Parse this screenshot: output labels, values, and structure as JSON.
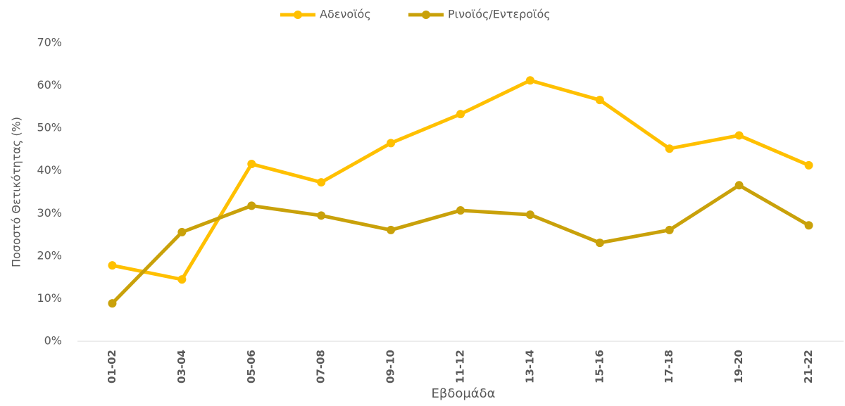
{
  "chart_data": {
    "type": "line",
    "x_label": "Εβδομάδα",
    "y_label": "Ποσοστό Θετικότητας (%)",
    "categories": [
      "01-02",
      "03-04",
      "05-06",
      "07-08",
      "09-10",
      "11-12",
      "13-14",
      "15-16",
      "17-18",
      "19-20",
      "21-22"
    ],
    "series": [
      {
        "name": "Αδενοϊός",
        "color": "#ffc000",
        "values": [
          17.8,
          14.5,
          41.6,
          37.3,
          46.5,
          53.3,
          61.2,
          56.6,
          45.2,
          48.3,
          41.3
        ]
      },
      {
        "name": "Ρινοϊός/Εντεροϊός",
        "color": "#c9a10a",
        "values": [
          8.9,
          25.6,
          31.8,
          29.5,
          26.1,
          30.7,
          29.7,
          23.1,
          26.1,
          36.6,
          27.2
        ]
      }
    ],
    "ylim": [
      0,
      70
    ],
    "yticks": [
      {
        "value": 0,
        "label": "0%"
      },
      {
        "value": 10,
        "label": "10%"
      },
      {
        "value": 20,
        "label": "20%"
      },
      {
        "value": 30,
        "label": "30%"
      },
      {
        "value": 40,
        "label": "40%"
      },
      {
        "value": 50,
        "label": "50%"
      },
      {
        "value": 60,
        "label": "60%"
      },
      {
        "value": 70,
        "label": "70%"
      }
    ],
    "legend": "top"
  }
}
